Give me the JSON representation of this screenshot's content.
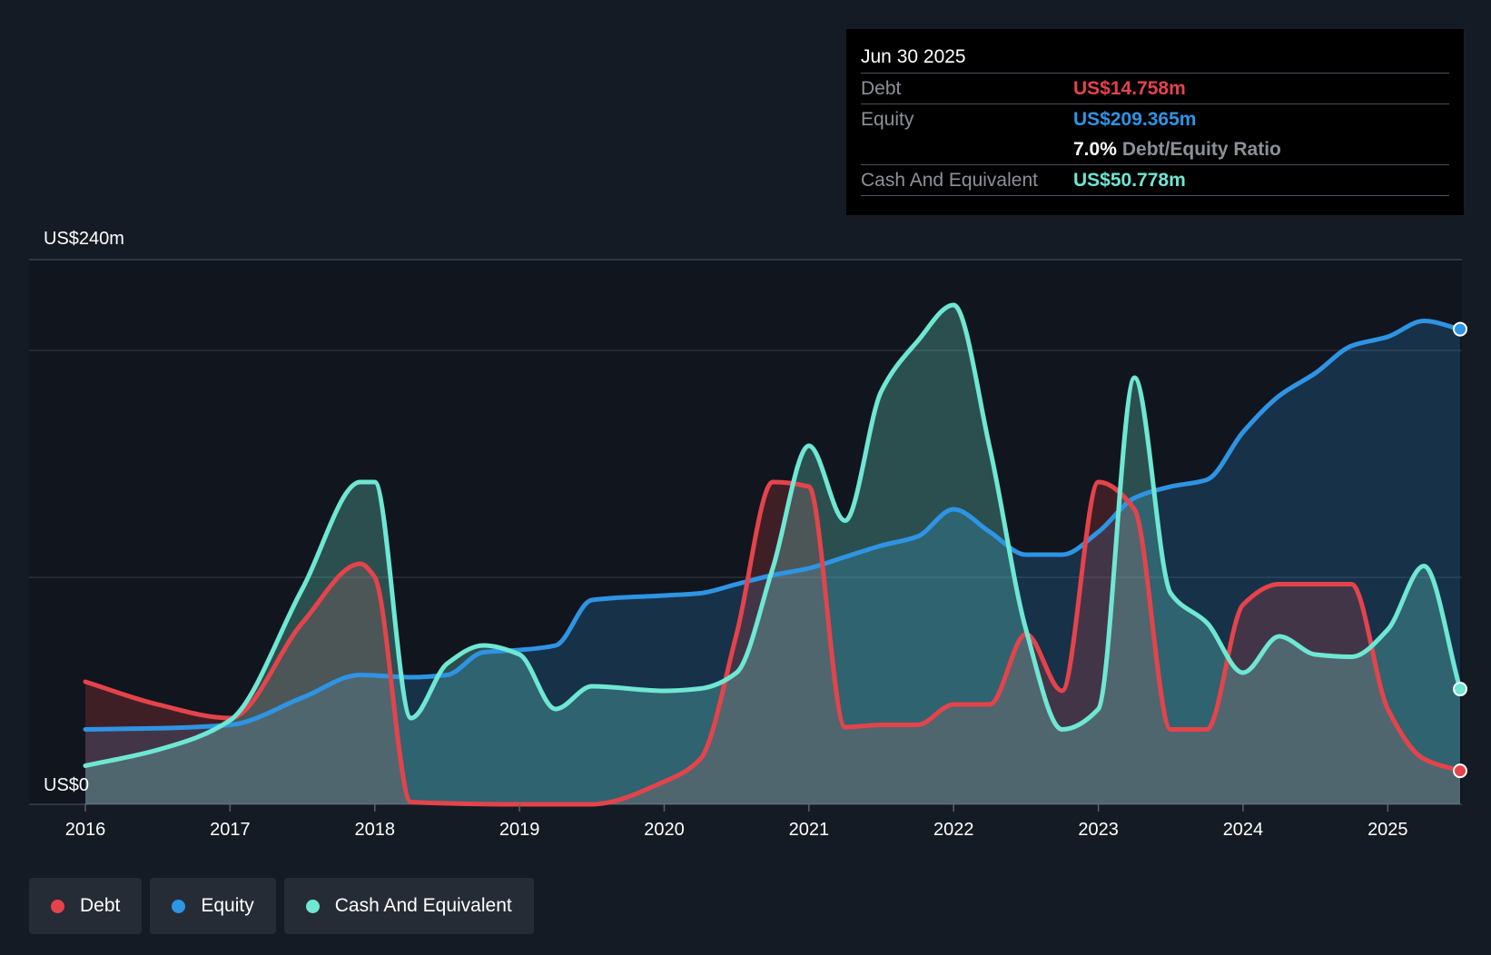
{
  "colors": {
    "debt": "#e5434b",
    "equity": "#2e94e4",
    "cash": "#6ee7d3",
    "background": "#151b24",
    "plot_background": "#11151d"
  },
  "tooltip": {
    "date": "Jun 30 2025",
    "rows": {
      "debt": {
        "label": "Debt",
        "value": "US$14.758m"
      },
      "equity": {
        "label": "Equity",
        "value": "US$209.365m"
      },
      "ratio": {
        "value": "7.0%",
        "label": "Debt/Equity Ratio"
      },
      "cash": {
        "label": "Cash And Equivalent",
        "value": "US$50.778m"
      }
    }
  },
  "legend": {
    "debt": "Debt",
    "equity": "Equity",
    "cash": "Cash And Equivalent"
  },
  "chart_data": {
    "type": "area",
    "ylim": [
      0,
      240
    ],
    "y_top_label": "US$240m",
    "y_bottom_label": "US$0",
    "x_ticks": [
      "2016",
      "2017",
      "2018",
      "2019",
      "2020",
      "2021",
      "2022",
      "2023",
      "2024",
      "2025"
    ],
    "x_range": [
      2016.0,
      2025.5
    ],
    "grid": true,
    "legend_position": "bottom-left",
    "series": [
      {
        "name": "Debt",
        "key": "debt",
        "x": [
          2016.0,
          2016.5,
          2017.0,
          2017.5,
          2017.9,
          2018.0,
          2018.25,
          2019.0,
          2019.5,
          2020.0,
          2020.25,
          2020.5,
          2020.75,
          2021.0,
          2021.25,
          2021.5,
          2021.75,
          2022.0,
          2022.25,
          2022.5,
          2022.75,
          2023.0,
          2023.25,
          2023.5,
          2023.75,
          2024.0,
          2024.25,
          2024.5,
          2024.75,
          2025.0,
          2025.25,
          2025.5
        ],
        "values": [
          54,
          44,
          38,
          80,
          106,
          100,
          1,
          0,
          0,
          10,
          20,
          75,
          142,
          140,
          34,
          35,
          35,
          44,
          44,
          75,
          50,
          142,
          130,
          33,
          33,
          88,
          97,
          97,
          97,
          42,
          20,
          14.758
        ]
      },
      {
        "name": "Equity",
        "key": "equity",
        "x": [
          2016.0,
          2016.5,
          2017.0,
          2017.5,
          2017.9,
          2018.25,
          2018.5,
          2018.75,
          2019.0,
          2019.25,
          2019.5,
          2020.0,
          2020.25,
          2020.5,
          2020.75,
          2021.0,
          2021.25,
          2021.5,
          2021.75,
          2022.0,
          2022.25,
          2022.5,
          2022.75,
          2023.0,
          2023.25,
          2023.5,
          2023.75,
          2024.0,
          2024.25,
          2024.5,
          2024.75,
          2025.0,
          2025.25,
          2025.5
        ],
        "values": [
          33,
          33.5,
          35,
          47,
          57,
          56,
          57,
          67,
          68,
          70,
          90,
          92,
          93,
          97,
          101,
          104,
          109,
          114,
          118,
          130,
          120,
          110,
          110,
          120,
          135,
          140,
          143,
          164,
          180,
          190,
          202,
          206,
          213,
          209.365
        ]
      },
      {
        "name": "Cash And Equivalent",
        "key": "cash",
        "x": [
          2016.0,
          2016.5,
          2017.0,
          2017.5,
          2017.9,
          2018.0,
          2018.25,
          2018.5,
          2018.75,
          2019.0,
          2019.25,
          2019.5,
          2020.0,
          2020.25,
          2020.5,
          2020.75,
          2021.0,
          2021.25,
          2021.5,
          2021.75,
          2022.0,
          2022.25,
          2022.5,
          2022.75,
          2023.0,
          2023.25,
          2023.5,
          2023.75,
          2024.0,
          2024.25,
          2024.5,
          2024.75,
          2025.0,
          2025.25,
          2025.5
        ],
        "values": [
          17,
          24,
          37,
          95,
          142,
          142,
          38,
          62,
          70,
          66,
          42,
          52,
          50,
          51,
          58,
          104,
          158,
          125,
          182,
          204,
          220,
          157,
          77,
          33,
          42,
          188,
          93,
          80,
          58,
          74,
          66,
          65,
          77,
          105,
          50.778
        ]
      }
    ]
  }
}
